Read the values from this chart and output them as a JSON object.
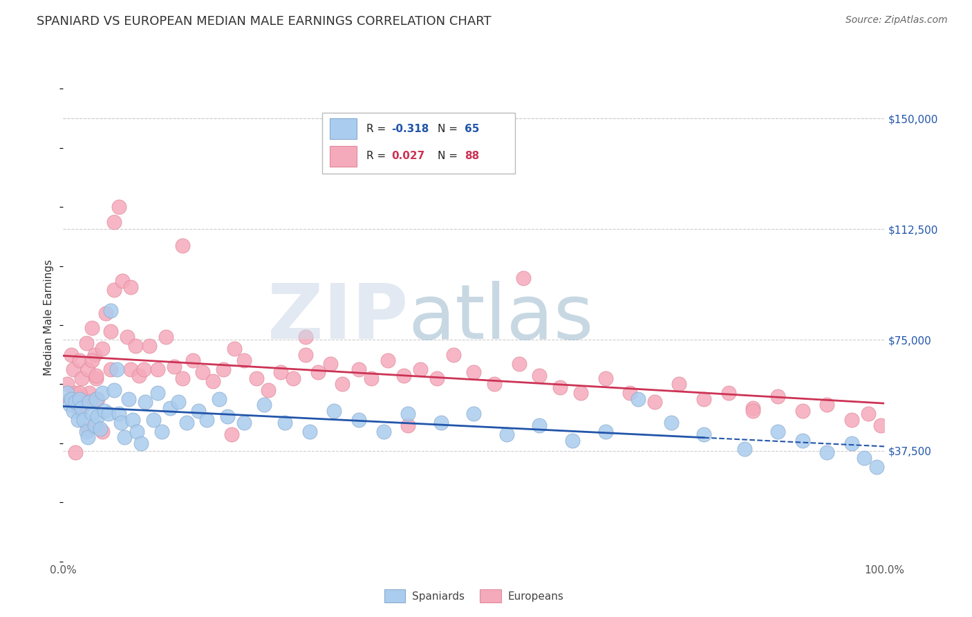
{
  "title": "SPANIARD VS EUROPEAN MEDIAN MALE EARNINGS CORRELATION CHART",
  "source": "Source: ZipAtlas.com",
  "ylabel": "Median Male Earnings",
  "xmin": 0.0,
  "xmax": 1.0,
  "ymin": 0,
  "ymax": 165000,
  "yticks": [
    37500,
    75000,
    112500,
    150000
  ],
  "ytick_labels": [
    "$37,500",
    "$75,000",
    "$112,500",
    "$150,000"
  ],
  "xtick_labels": [
    "0.0%",
    "100.0%"
  ],
  "spaniards_color": "#aaccee",
  "europeans_color": "#f5aabb",
  "spaniards_edge": "#88aacc",
  "europeans_edge": "#e08899",
  "trend_spaniards_color": "#2255aa",
  "trend_europeans_color": "#cc3355",
  "R_spaniards": -0.318,
  "N_spaniards": 65,
  "R_europeans": 0.027,
  "N_europeans": 88,
  "watermark_zip_color": "#ccd8e8",
  "watermark_atlas_color": "#99b8cc",
  "grid_color": "#cccccc",
  "spaniards_x": [
    0.005,
    0.008,
    0.01,
    0.012,
    0.015,
    0.018,
    0.02,
    0.022,
    0.025,
    0.028,
    0.03,
    0.032,
    0.035,
    0.038,
    0.04,
    0.042,
    0.045,
    0.048,
    0.05,
    0.055,
    0.058,
    0.062,
    0.065,
    0.068,
    0.07,
    0.075,
    0.08,
    0.085,
    0.09,
    0.095,
    0.1,
    0.11,
    0.115,
    0.12,
    0.13,
    0.14,
    0.15,
    0.165,
    0.175,
    0.19,
    0.2,
    0.22,
    0.245,
    0.27,
    0.3,
    0.33,
    0.36,
    0.39,
    0.42,
    0.46,
    0.5,
    0.54,
    0.58,
    0.62,
    0.66,
    0.7,
    0.74,
    0.78,
    0.83,
    0.87,
    0.9,
    0.93,
    0.96,
    0.975,
    0.99
  ],
  "spaniards_y": [
    57000,
    53000,
    55000,
    51000,
    54000,
    48000,
    55000,
    52000,
    48000,
    44000,
    42000,
    54000,
    50000,
    46000,
    55000,
    49000,
    45000,
    57000,
    51000,
    50000,
    85000,
    58000,
    65000,
    50000,
    47000,
    42000,
    55000,
    48000,
    44000,
    40000,
    54000,
    48000,
    57000,
    44000,
    52000,
    54000,
    47000,
    51000,
    48000,
    55000,
    49000,
    47000,
    53000,
    47000,
    44000,
    51000,
    48000,
    44000,
    50000,
    47000,
    50000,
    43000,
    46000,
    41000,
    44000,
    55000,
    47000,
    43000,
    38000,
    44000,
    41000,
    37000,
    40000,
    35000,
    32000
  ],
  "europeans_x": [
    0.005,
    0.008,
    0.01,
    0.012,
    0.015,
    0.018,
    0.02,
    0.022,
    0.025,
    0.028,
    0.03,
    0.032,
    0.035,
    0.038,
    0.04,
    0.042,
    0.048,
    0.052,
    0.058,
    0.062,
    0.068,
    0.072,
    0.078,
    0.082,
    0.088,
    0.092,
    0.098,
    0.105,
    0.115,
    0.125,
    0.135,
    0.145,
    0.158,
    0.17,
    0.182,
    0.195,
    0.208,
    0.22,
    0.235,
    0.25,
    0.265,
    0.28,
    0.295,
    0.31,
    0.325,
    0.34,
    0.36,
    0.375,
    0.395,
    0.415,
    0.435,
    0.455,
    0.475,
    0.5,
    0.525,
    0.555,
    0.58,
    0.605,
    0.63,
    0.66,
    0.69,
    0.72,
    0.75,
    0.78,
    0.81,
    0.84,
    0.87,
    0.9,
    0.93,
    0.96,
    0.98,
    0.995,
    0.062,
    0.082,
    0.145,
    0.205,
    0.295,
    0.42,
    0.56,
    0.84,
    0.035,
    0.048,
    0.02,
    0.058,
    0.03,
    0.025,
    0.015,
    0.04
  ],
  "europeans_y": [
    60000,
    55000,
    70000,
    65000,
    57000,
    52000,
    68000,
    62000,
    55000,
    74000,
    65000,
    57000,
    79000,
    70000,
    62000,
    55000,
    72000,
    84000,
    78000,
    92000,
    120000,
    95000,
    76000,
    65000,
    73000,
    63000,
    65000,
    73000,
    65000,
    76000,
    66000,
    62000,
    68000,
    64000,
    61000,
    65000,
    72000,
    68000,
    62000,
    58000,
    64000,
    62000,
    70000,
    64000,
    67000,
    60000,
    65000,
    62000,
    68000,
    63000,
    65000,
    62000,
    70000,
    64000,
    60000,
    67000,
    63000,
    59000,
    57000,
    62000,
    57000,
    54000,
    60000,
    55000,
    57000,
    52000,
    56000,
    51000,
    53000,
    48000,
    50000,
    46000,
    115000,
    93000,
    107000,
    43000,
    76000,
    46000,
    96000,
    51000,
    68000,
    44000,
    57000,
    65000,
    45000,
    53000,
    37000,
    63000
  ]
}
